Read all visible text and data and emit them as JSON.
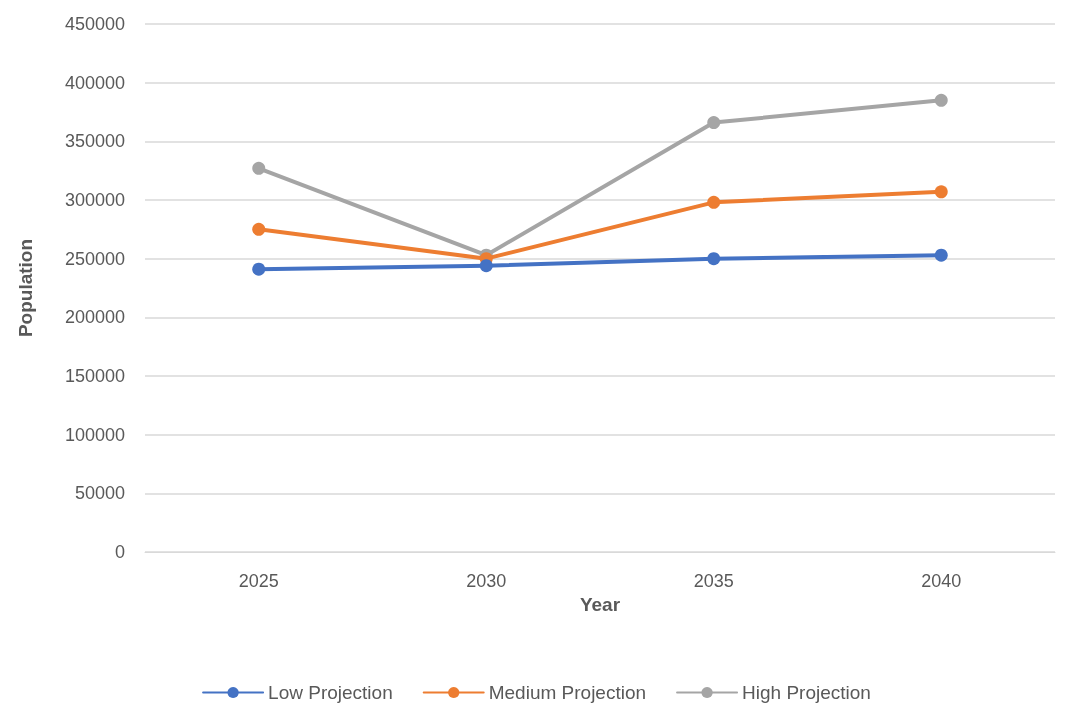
{
  "chart_data": {
    "type": "line",
    "xlabel": "Year",
    "ylabel": "Population",
    "categories": [
      "2025",
      "2030",
      "2035",
      "2040"
    ],
    "series": [
      {
        "name": "Low Projection",
        "color": "#4472c4",
        "values": [
          241000,
          244000,
          250000,
          253000
        ]
      },
      {
        "name": "Medium Projection",
        "color": "#ed7d31",
        "values": [
          275000,
          250000,
          298000,
          307000
        ]
      },
      {
        "name": "High Projection",
        "color": "#a5a5a5",
        "values": [
          327000,
          253000,
          366000,
          385000
        ]
      }
    ],
    "ylim": [
      0,
      450000
    ],
    "yticks": [
      0,
      50000,
      100000,
      150000,
      200000,
      250000,
      300000,
      350000,
      400000,
      450000
    ],
    "grid": "y",
    "legend": "bottom",
    "marker": "circle",
    "line_style": "solid"
  }
}
